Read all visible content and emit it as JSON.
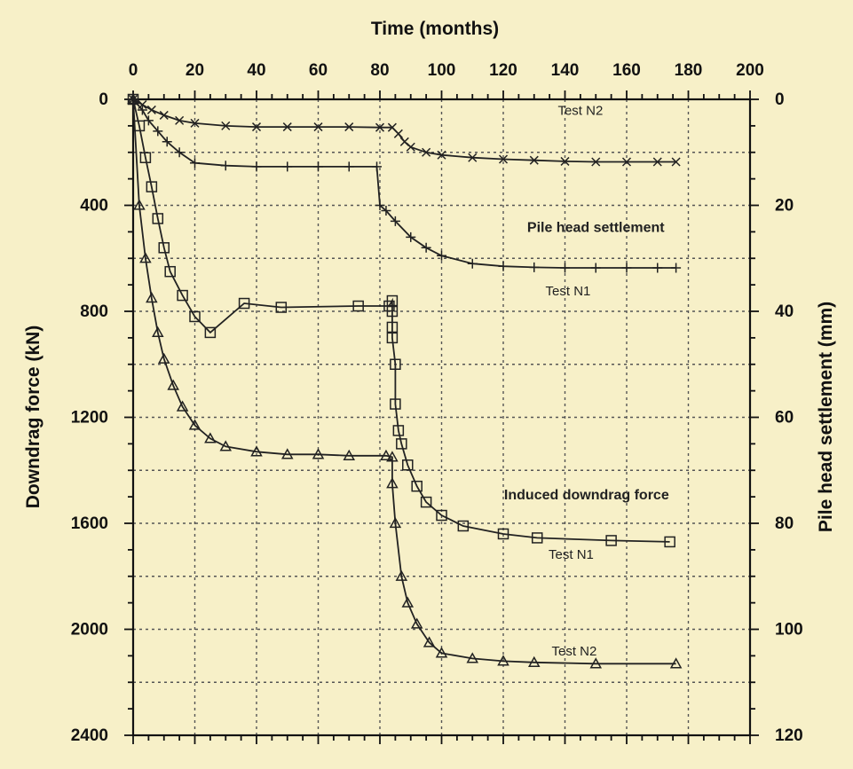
{
  "chart_data": {
    "type": "line",
    "xlabel": "Time (months)",
    "ylabel_left": "Downdrag force (kN)",
    "ylabel_right": "Pile head settlement (mm)",
    "xlim": [
      0,
      200
    ],
    "xticks": [
      0,
      20,
      40,
      60,
      80,
      100,
      120,
      140,
      160,
      180,
      200
    ],
    "ylim_left": [
      0,
      2400
    ],
    "yticks_left": [
      0,
      400,
      800,
      1200,
      1600,
      2000,
      2400
    ],
    "ylim_right": [
      0,
      120
    ],
    "yticks_right": [
      0,
      20,
      40,
      60,
      80,
      100,
      120
    ],
    "y_inverted": true,
    "grid": true,
    "annotations": [
      {
        "text": "Test N2",
        "x": 145,
        "y_right": 2.3,
        "bold": false
      },
      {
        "text": "Pile head settlement",
        "x": 150,
        "y_right": 24.3,
        "bold": true
      },
      {
        "text": "Test N1",
        "x": 141,
        "y_right": 36.3,
        "bold": false
      },
      {
        "text": "Induced downdrag force",
        "x": 147,
        "y_left": 1495,
        "bold": true
      },
      {
        "text": "Test N1",
        "x": 142,
        "y_left": 1720,
        "bold": false
      },
      {
        "text": "Test N2",
        "x": 143,
        "y_left": 2085,
        "bold": false
      }
    ],
    "series": [
      {
        "group": "Pile head settlement",
        "axis": "right",
        "marker": "x",
        "points": [
          [
            0,
            0
          ],
          [
            3,
            1
          ],
          [
            6,
            2
          ],
          [
            10,
            3
          ],
          [
            15,
            4
          ],
          [
            20,
            4.5
          ],
          [
            30,
            5
          ],
          [
            40,
            5.2
          ],
          [
            50,
            5.2
          ],
          [
            60,
            5.2
          ],
          [
            70,
            5.2
          ],
          [
            80,
            5.3
          ],
          [
            84,
            5.3
          ],
          [
            86,
            6.5
          ],
          [
            88,
            8
          ],
          [
            90,
            9
          ],
          [
            95,
            10
          ],
          [
            100,
            10.5
          ],
          [
            110,
            11
          ],
          [
            120,
            11.3
          ],
          [
            130,
            11.5
          ],
          [
            140,
            11.7
          ],
          [
            150,
            11.8
          ],
          [
            160,
            11.8
          ],
          [
            170,
            11.8
          ],
          [
            176,
            11.8
          ]
        ]
      },
      {
        "group": "Pile head settlement",
        "axis": "right",
        "marker": "+",
        "points": [
          [
            0,
            0
          ],
          [
            3,
            2
          ],
          [
            5,
            4
          ],
          [
            8,
            6
          ],
          [
            11,
            8
          ],
          [
            15,
            10
          ],
          [
            20,
            12
          ],
          [
            30,
            12.5
          ],
          [
            40,
            12.7
          ],
          [
            50,
            12.7
          ],
          [
            60,
            12.7
          ],
          [
            70,
            12.7
          ],
          [
            79,
            12.7
          ],
          [
            80,
            20
          ],
          [
            82,
            21
          ],
          [
            85,
            23
          ],
          [
            90,
            26
          ],
          [
            95,
            28
          ],
          [
            100,
            29.5
          ],
          [
            110,
            31
          ],
          [
            120,
            31.5
          ],
          [
            130,
            31.7
          ],
          [
            140,
            31.8
          ],
          [
            150,
            31.8
          ],
          [
            160,
            31.8
          ],
          [
            170,
            31.8
          ],
          [
            176,
            31.8
          ]
        ]
      },
      {
        "group": "Induced downdrag force",
        "axis": "left",
        "marker": "square",
        "points": [
          [
            0,
            0
          ],
          [
            2,
            100
          ],
          [
            4,
            220
          ],
          [
            6,
            330
          ],
          [
            8,
            450
          ],
          [
            10,
            560
          ],
          [
            12,
            650
          ],
          [
            16,
            740
          ],
          [
            20,
            820
          ],
          [
            25,
            880
          ],
          [
            36,
            770
          ],
          [
            48,
            785
          ],
          [
            73,
            780
          ],
          [
            83,
            780
          ],
          [
            84,
            760
          ],
          [
            84,
            800
          ],
          [
            84,
            860
          ],
          [
            84,
            900
          ],
          [
            85,
            1000
          ],
          [
            85,
            1150
          ],
          [
            86,
            1250
          ],
          [
            87,
            1300
          ],
          [
            89,
            1380
          ],
          [
            92,
            1460
          ],
          [
            95,
            1520
          ],
          [
            100,
            1570
          ],
          [
            107,
            1610
          ],
          [
            120,
            1640
          ],
          [
            131,
            1655
          ],
          [
            155,
            1665
          ],
          [
            174,
            1670
          ]
        ]
      },
      {
        "group": "Induced downdrag force",
        "axis": "left",
        "marker": "triangle",
        "points": [
          [
            0,
            0
          ],
          [
            2,
            400
          ],
          [
            4,
            600
          ],
          [
            6,
            750
          ],
          [
            8,
            880
          ],
          [
            10,
            980
          ],
          [
            13,
            1080
          ],
          [
            16,
            1160
          ],
          [
            20,
            1230
          ],
          [
            25,
            1280
          ],
          [
            30,
            1310
          ],
          [
            40,
            1330
          ],
          [
            50,
            1340
          ],
          [
            60,
            1340
          ],
          [
            70,
            1345
          ],
          [
            82,
            1345
          ],
          [
            84,
            1350
          ],
          [
            84,
            1450
          ],
          [
            85,
            1600
          ],
          [
            87,
            1800
          ],
          [
            89,
            1900
          ],
          [
            92,
            1980
          ],
          [
            96,
            2050
          ],
          [
            100,
            2090
          ],
          [
            110,
            2110
          ],
          [
            120,
            2120
          ],
          [
            130,
            2125
          ],
          [
            150,
            2130
          ],
          [
            176,
            2130
          ]
        ]
      }
    ]
  }
}
